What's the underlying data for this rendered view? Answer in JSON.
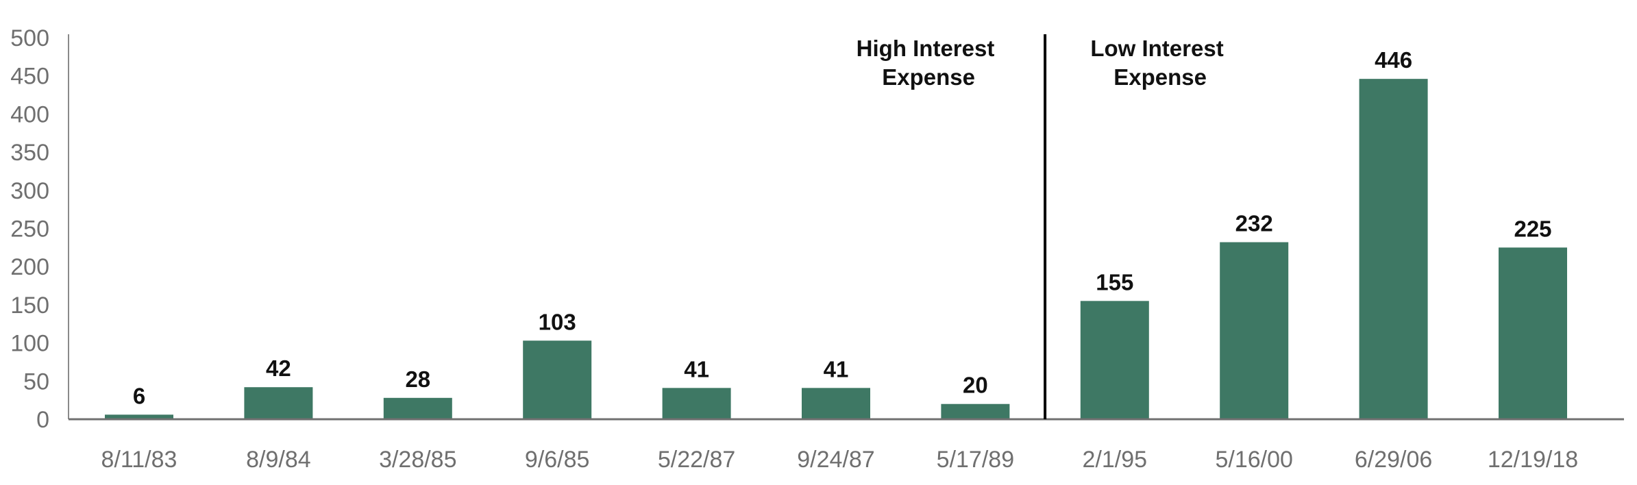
{
  "chart_data": {
    "type": "bar",
    "title": "",
    "xlabel": "",
    "ylabel": "",
    "categories": [
      "8/11/83",
      "8/9/84",
      "3/28/85",
      "9/6/85",
      "5/22/87",
      "9/24/87",
      "5/17/89",
      "2/1/95",
      "5/16/00",
      "6/29/06",
      "12/19/18"
    ],
    "values": [
      6,
      42,
      28,
      103,
      41,
      41,
      20,
      155,
      232,
      446,
      225
    ],
    "data_labels": [
      "6",
      "42",
      "28",
      "103",
      "41",
      "41",
      "20",
      "155",
      "232",
      "446",
      "225"
    ],
    "ylim": [
      0,
      500
    ],
    "yticks": [
      "0",
      "50",
      "100",
      "150",
      "200",
      "250",
      "300",
      "350",
      "400",
      "450",
      "500"
    ],
    "bar_color": "#3e7864",
    "grid": false,
    "divider_after_category": "5/17/89",
    "annotations": {
      "left": [
        "High Interest",
        "Expense"
      ],
      "right": [
        "Low Interest",
        "Expense"
      ]
    }
  }
}
